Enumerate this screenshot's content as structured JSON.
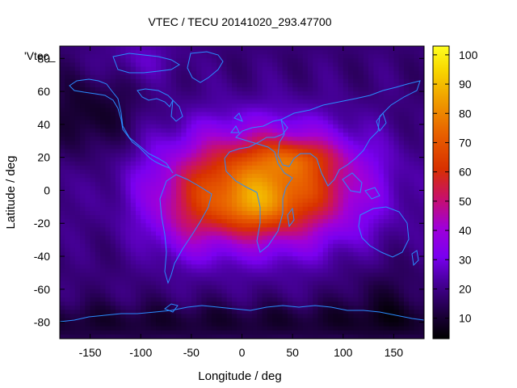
{
  "chart_data": {
    "type": "heatmap",
    "title": "VTEC / TECU 20141020_293.47700",
    "series_label": "'Vtec_",
    "xlabel": "Longitude / deg",
    "ylabel": "Latitude / deg",
    "xlim": [
      -180,
      180
    ],
    "ylim": [
      -90,
      87.5
    ],
    "x_ticks": [
      -150,
      -100,
      -50,
      0,
      50,
      100,
      150
    ],
    "y_ticks": [
      80,
      60,
      40,
      20,
      0,
      -20,
      -40,
      -60,
      -80
    ],
    "colorbar": {
      "range": [
        3,
        103
      ],
      "ticks": [
        10,
        20,
        30,
        40,
        50,
        60,
        70,
        80,
        90,
        100
      ],
      "palette": "black-purple-red-orange-yellow"
    },
    "field_peak": {
      "value": 90,
      "lon": 20,
      "lat": 5
    },
    "colors": {
      "coastline": "#2a8cff",
      "frame": "#000000"
    }
  }
}
